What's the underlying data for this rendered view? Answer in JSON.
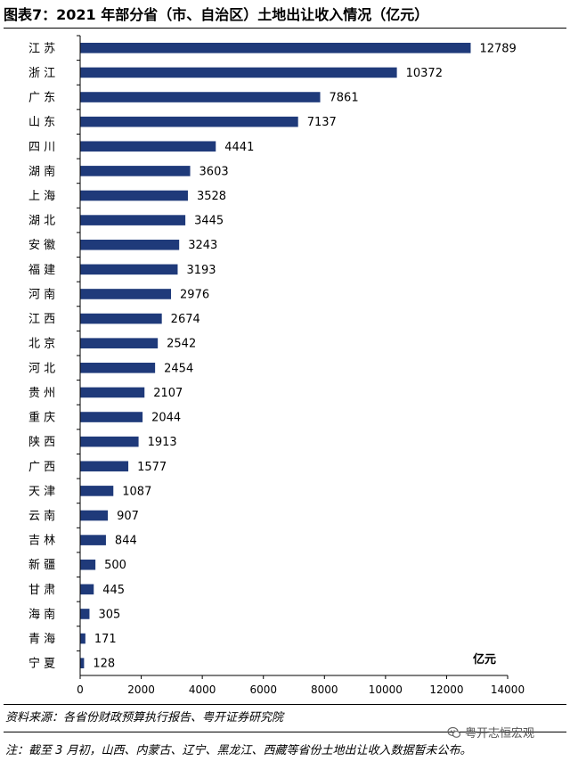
{
  "header": {
    "title": "图表7：2021 年部分省（市、自治区）土地出让收入情况（亿元）"
  },
  "chart_data": {
    "type": "bar",
    "orientation": "horizontal",
    "title": "图表7：2021 年部分省（市、自治区）土地出让收入情况（亿元）",
    "unit": "亿元",
    "categories": [
      "江 苏",
      "浙 江",
      "广 东",
      "山 东",
      "四 川",
      "湖 南",
      "上 海",
      "湖 北",
      "安 徽",
      "福 建",
      "河 南",
      "江 西",
      "北 京",
      "河 北",
      "贵 州",
      "重 庆",
      "陕 西",
      "广 西",
      "天 津",
      "云 南",
      "吉 林",
      "新 疆",
      "甘 肃",
      "海 南",
      "青 海",
      "宁 夏"
    ],
    "values": [
      12789,
      10372,
      7861,
      7137,
      4441,
      3603,
      3528,
      3445,
      3243,
      3193,
      2976,
      2674,
      2542,
      2454,
      2107,
      2044,
      1913,
      1577,
      1087,
      907,
      844,
      500,
      445,
      305,
      171,
      128
    ],
    "xlim": [
      0,
      14000
    ],
    "xticks": [
      0,
      2000,
      4000,
      6000,
      8000,
      10000,
      12000,
      14000
    ],
    "grid": false,
    "legend": "none",
    "bar_color": "#1f3a7a"
  },
  "footer": {
    "source": "资料来源：各省份财政预算执行报告、粤开证券研究院",
    "note": "注：截至 3 月初，山西、内蒙古、辽宁、黑龙江、西藏等省份土地出让收入数据暂未公布。",
    "watermark": "粤开志恒宏观",
    "watermark_icon": "wechat-icon"
  }
}
